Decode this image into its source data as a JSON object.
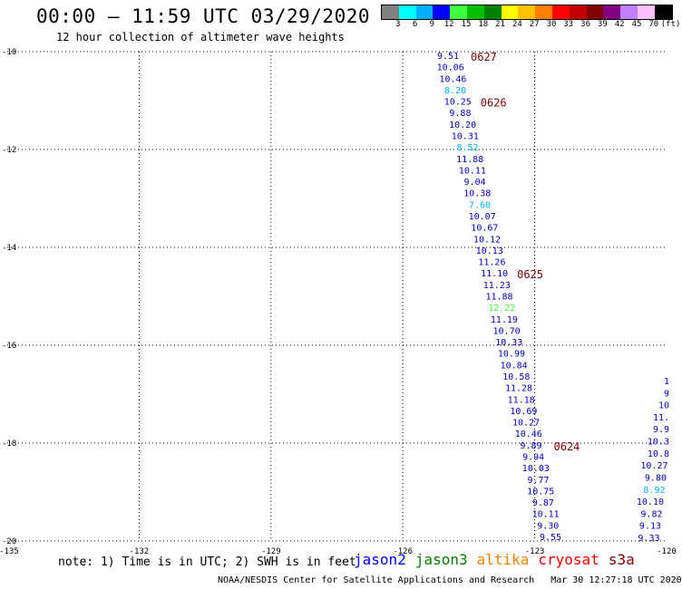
{
  "header": {
    "title": "00:00 – 11:59 UTC 03/29/2020",
    "subtitle": "12 hour collection of altimeter wave heights"
  },
  "colorbar": {
    "ticks": [
      "3",
      "6",
      "9",
      "12",
      "15",
      "18",
      "21",
      "24",
      "27",
      "30",
      "33",
      "36",
      "39",
      "42",
      "45",
      "70",
      "(ft)"
    ],
    "colors": [
      "#808080",
      "#00ffff",
      "#00b0ff",
      "#0000ff",
      "#40ff40",
      "#00c000",
      "#008000",
      "#ffff00",
      "#ffc000",
      "#ff8000",
      "#ff0000",
      "#c00000",
      "#800000",
      "#800080",
      "#c080ff",
      "#ffc0ff",
      "#000000"
    ]
  },
  "map": {
    "lon_ticks": [
      "-135",
      "-132",
      "-129",
      "-126",
      "-123",
      "-120"
    ],
    "lat_ticks": [
      "-10",
      "-12",
      "-14",
      "-16",
      "-18",
      "-20"
    ],
    "lon_range": [
      -135,
      -120
    ],
    "lat_range": [
      -20,
      -10
    ],
    "gridlines": "dotted"
  },
  "tracks": [
    {
      "name": "track-a",
      "color": "#0000c0",
      "values": [
        {
          "v": "9.51"
        },
        {
          "v": "10.06"
        },
        {
          "v": "10.46"
        },
        {
          "v": "8.20",
          "c": "#00b0ff"
        },
        {
          "v": "10.25"
        },
        {
          "v": "9.88"
        },
        {
          "v": "10.20"
        },
        {
          "v": "10.31"
        },
        {
          "v": "8.52",
          "c": "#00b0ff"
        },
        {
          "v": "11.88"
        },
        {
          "v": "10.11"
        },
        {
          "v": "9.04"
        },
        {
          "v": "10.38"
        },
        {
          "v": "7.60",
          "c": "#00b0ff"
        },
        {
          "v": "10.07"
        },
        {
          "v": "10.67"
        },
        {
          "v": "10.12"
        },
        {
          "v": "10.13"
        },
        {
          "v": "11.26"
        },
        {
          "v": "11.10"
        },
        {
          "v": "11.23"
        },
        {
          "v": "11.88"
        },
        {
          "v": "12.22",
          "c": "#40ff40"
        },
        {
          "v": "11.19"
        },
        {
          "v": "10.70"
        },
        {
          "v": "10.33"
        },
        {
          "v": "10.99"
        },
        {
          "v": "10.84"
        },
        {
          "v": "10.58"
        },
        {
          "v": "11.28"
        },
        {
          "v": "11.18"
        },
        {
          "v": "10.69"
        },
        {
          "v": "10.27"
        },
        {
          "v": "10.46"
        },
        {
          "v": "9.89"
        },
        {
          "v": "9.94"
        },
        {
          "v": "10.03"
        },
        {
          "v": "9.77"
        },
        {
          "v": "10.75"
        },
        {
          "v": "9.87"
        },
        {
          "v": "10.11"
        },
        {
          "v": "9.30"
        },
        {
          "v": "9.55"
        }
      ],
      "time_labels": [
        {
          "text": "0627",
          "after_index": 0
        },
        {
          "text": "0626",
          "after_index": 4
        },
        {
          "text": "0625",
          "after_index": 19
        },
        {
          "text": "0624",
          "after_index": 34
        }
      ]
    },
    {
      "name": "track-b",
      "color": "#0000c0",
      "values": [
        {
          "v": "1"
        },
        {
          "v": "9"
        },
        {
          "v": "10"
        },
        {
          "v": "11."
        },
        {
          "v": "9.9"
        },
        {
          "v": "10.3"
        },
        {
          "v": "10.8"
        },
        {
          "v": "10.27"
        },
        {
          "v": "9.80"
        },
        {
          "v": "8.92",
          "c": "#00b0ff"
        },
        {
          "v": "10.10"
        },
        {
          "v": "9.82"
        },
        {
          "v": "9.13"
        },
        {
          "v": "9.33"
        }
      ]
    }
  ],
  "note": "note: 1) Time is in UTC; 2) SWH is in feet",
  "legend": [
    {
      "label": "jason2",
      "color": "#0000ff"
    },
    {
      "label": "jason3",
      "color": "#008000"
    },
    {
      "label": "altika",
      "color": "#ff8000"
    },
    {
      "label": "cryosat",
      "color": "#ff0000"
    },
    {
      "label": "s3a",
      "color": "#800000"
    }
  ],
  "footer": {
    "credit": "NOAA/NESDIS Center for Satellite Applications and Research",
    "timestamp": "Mar 30 12:27:18 UTC 2020"
  }
}
